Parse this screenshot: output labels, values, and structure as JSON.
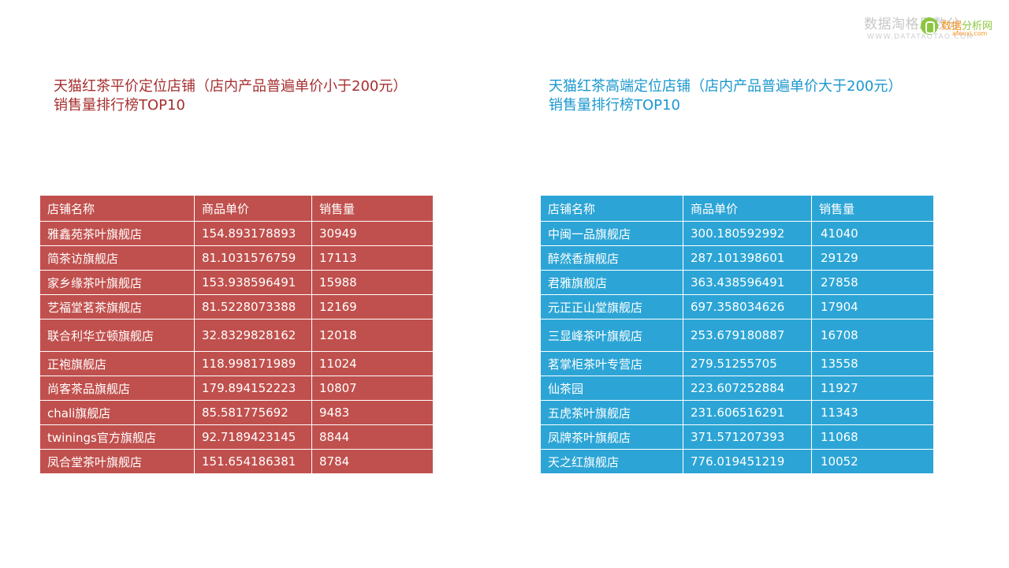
{
  "watermark": {
    "text": "数据淘格局数分",
    "url": "WWW.DATATAOTAO.COM",
    "badge_name_a": "数据",
    "badge_name_b": "分析网",
    "badge_sub": "afenxi.com"
  },
  "left": {
    "title_line1": "天猫红茶平价定位店铺（店内产品普遍单价小于200元）",
    "title_line2": "销售量排行榜TOP10",
    "headers": [
      "店铺名称",
      "商品单价",
      "销售量"
    ],
    "rows": [
      [
        "雅鑫苑茶叶旗舰店",
        "154.893178893",
        "30949"
      ],
      [
        "简茶访旗舰店",
        "81.1031576759",
        "17113"
      ],
      [
        "家乡缘茶叶旗舰店",
        "153.938596491",
        "15988"
      ],
      [
        "艺福堂茗茶旗舰店",
        "81.5228073388",
        "12169"
      ],
      [
        "联合利华立顿旗舰店",
        "32.8329828162",
        "12018"
      ],
      [
        "正袍旗舰店",
        "118.998171989",
        "11024"
      ],
      [
        "尚客茶品旗舰店",
        "179.894152223",
        "10807"
      ],
      [
        "chali旗舰店",
        "85.581775692",
        "9483"
      ],
      [
        "twinings官方旗舰店",
        "92.7189423145",
        "8844"
      ],
      [
        "凤合堂茶叶旗舰店",
        "151.654186381",
        "8784"
      ]
    ]
  },
  "right": {
    "title_line1": "天猫红茶高端定位店铺（店内产品普遍单价大于200元）",
    "title_line2": "销售量排行榜TOP10",
    "headers": [
      "店铺名称",
      "商品单价",
      "销售量"
    ],
    "rows": [
      [
        "中闽一品旗舰店",
        "300.180592992",
        "41040"
      ],
      [
        "醉然香旗舰店",
        "287.101398601",
        "29129"
      ],
      [
        "君雅旗舰店",
        "363.438596491",
        "27858"
      ],
      [
        "元正正山堂旗舰店",
        "697.358034626",
        "17904"
      ],
      [
        "三显峰茶叶旗舰店",
        "253.679180887",
        "16708"
      ],
      [
        "茗掌柜茶叶专营店",
        "279.51255705",
        "13558"
      ],
      [
        "仙茶园",
        "223.607252884",
        "11927"
      ],
      [
        "五虎茶叶旗舰店",
        "231.606516291",
        "11343"
      ],
      [
        "凤牌茶叶旗舰店",
        "371.571207393",
        "11068"
      ],
      [
        "天之红旗舰店",
        "776.019451219",
        "10052"
      ]
    ]
  },
  "colors": {
    "left_table": "#c0504d",
    "right_table": "#2ca5d6",
    "left_title": "#a62f2f",
    "right_title": "#1b97cf"
  }
}
